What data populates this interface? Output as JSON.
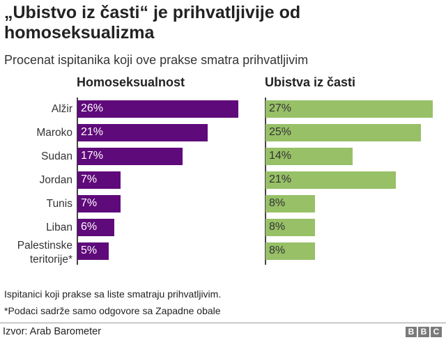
{
  "title": "„Ubistvo iz časti“ je prihvatljivije od homoseksualizma",
  "subtitle": "Procenat ispitanika koji ove prakse smatra prihvatljivim",
  "chart_data": [
    {
      "type": "bar",
      "title": "Homoseksualnost",
      "categories": [
        "Alžir",
        "Maroko",
        "Sudan",
        "Jordan",
        "Tunis",
        "Liban",
        "Palestinske teritorije*"
      ],
      "values": [
        26,
        21,
        17,
        7,
        7,
        6,
        5
      ],
      "data_labels": [
        "26%",
        "21%",
        "17%",
        "7%",
        "7%",
        "6%",
        "5%"
      ],
      "color": "#5f0a7a",
      "label_color": "#ffffff",
      "orientation": "horizontal"
    },
    {
      "type": "bar",
      "title": "Ubistva iz časti",
      "categories": [
        "Alžir",
        "Maroko",
        "Sudan",
        "Jordan",
        "Tunis",
        "Liban",
        "Palestinske teritorije*"
      ],
      "values": [
        27,
        25,
        14,
        21,
        8,
        8,
        8
      ],
      "data_labels": [
        "27%",
        "25%",
        "14%",
        "21%",
        "8%",
        "8%",
        "8%"
      ],
      "color": "#97c067",
      "label_color": "#333333",
      "orientation": "horizontal"
    }
  ],
  "category_labels": [
    "Alžir",
    "Maroko",
    "Sudan",
    "Jordan",
    "Tunis",
    "Liban",
    "Palestinske",
    "teritorije*"
  ],
  "notes": [
    "Ispitanici koji prakse sa liste smatraju prihvatljivim.",
    "*Podaci sadrže samo odgovore sa Zapadne obale"
  ],
  "source": "Izvor: Arab Barometer",
  "logo": [
    "B",
    "B",
    "C"
  ]
}
